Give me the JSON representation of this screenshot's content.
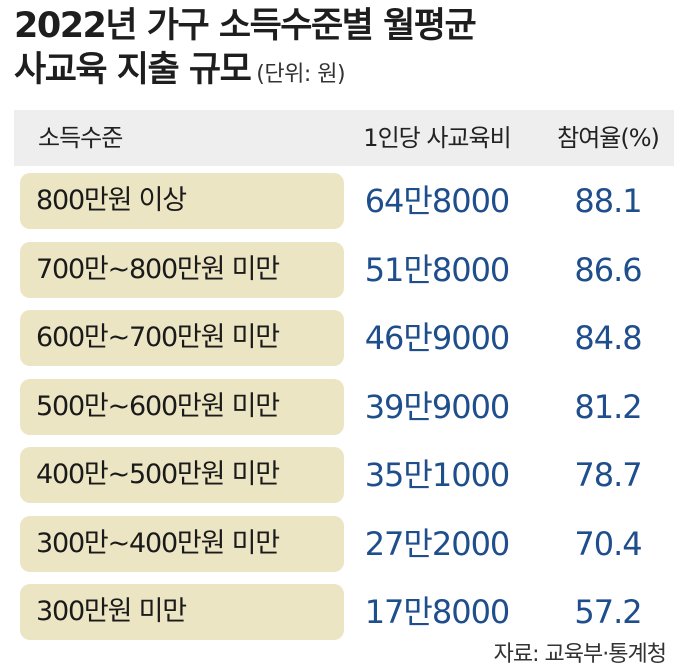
{
  "title": {
    "line1": "2022년 가구 소득수준별 월평균",
    "line2": "사교육 지출 규모",
    "unit": "(단위: 원)"
  },
  "colors": {
    "pill": "#ece5c4",
    "header_band": "#eeeeee",
    "value_text": "#1f4e8c"
  },
  "chart_data": {
    "type": "table",
    "columns": [
      "소득수준",
      "1인당 사교육비",
      "참여율(%)"
    ],
    "rows": [
      {
        "level": "800만원 이상",
        "cost": "64만8000",
        "rate": "88.1"
      },
      {
        "level": "700만~800만원 미만",
        "cost": "51만8000",
        "rate": "86.6"
      },
      {
        "level": "600만~700만원 미만",
        "cost": "46만9000",
        "rate": "84.8"
      },
      {
        "level": "500만~600만원 미만",
        "cost": "39만9000",
        "rate": "81.2"
      },
      {
        "level": "400만~500만원 미만",
        "cost": "35만1000",
        "rate": "78.7"
      },
      {
        "level": "300만~400만원 미만",
        "cost": "27만2000",
        "rate": "70.4"
      },
      {
        "level": "300만원 미만",
        "cost": "17만8000",
        "rate": "57.2"
      }
    ]
  },
  "source": "자료: 교육부·통계청"
}
